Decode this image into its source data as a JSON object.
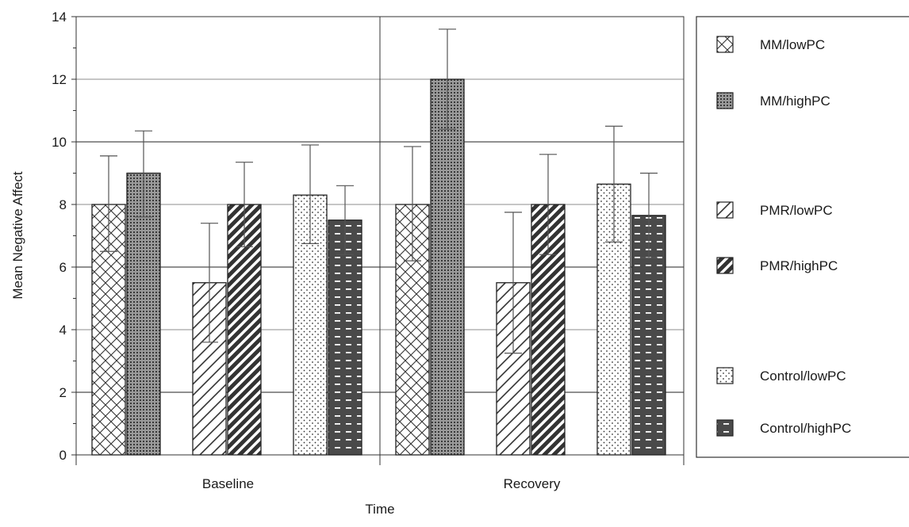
{
  "chart_data": {
    "type": "bar",
    "xlabel": "Time",
    "ylabel": "Mean Negative Affect",
    "ylim": [
      0,
      14
    ],
    "yticks": [
      0,
      2,
      4,
      6,
      8,
      10,
      12,
      14
    ],
    "grid": true,
    "legend_position": "right",
    "categories": [
      "Baseline",
      "Recovery"
    ],
    "series": [
      {
        "name": "MM/lowPC",
        "values": [
          8.0,
          8.0
        ],
        "error_upper": [
          9.55,
          9.85
        ],
        "error_lower": [
          6.5,
          6.2
        ],
        "pattern": "crosshatch",
        "color": "#ffffff"
      },
      {
        "name": "MM/highPC",
        "values": [
          9.0,
          12.0
        ],
        "error_upper": [
          10.35,
          13.6
        ],
        "error_lower": [
          7.6,
          10.4
        ],
        "pattern": "dense-dots",
        "color": "#8a8a8a"
      },
      {
        "name": "PMR/lowPC",
        "values": [
          5.5,
          5.5
        ],
        "error_upper": [
          7.4,
          7.75
        ],
        "error_lower": [
          3.6,
          3.25
        ],
        "pattern": "light-diagonal",
        "color": "#ffffff"
      },
      {
        "name": "PMR/highPC",
        "values": [
          8.0,
          8.0
        ],
        "error_upper": [
          9.35,
          9.6
        ],
        "error_lower": [
          6.65,
          6.4
        ],
        "pattern": "heavy-diagonal",
        "color": "#3a3a3a"
      },
      {
        "name": "Control/lowPC",
        "values": [
          8.3,
          8.65
        ],
        "error_upper": [
          9.9,
          10.5
        ],
        "error_lower": [
          6.75,
          6.8
        ],
        "pattern": "sparse-dots",
        "color": "#ffffff"
      },
      {
        "name": "Control/highPC",
        "values": [
          7.5,
          7.65
        ],
        "error_upper": [
          8.6,
          9.0
        ],
        "error_lower": [
          6.4,
          6.3
        ],
        "pattern": "dashes",
        "color": "#555555"
      }
    ]
  }
}
